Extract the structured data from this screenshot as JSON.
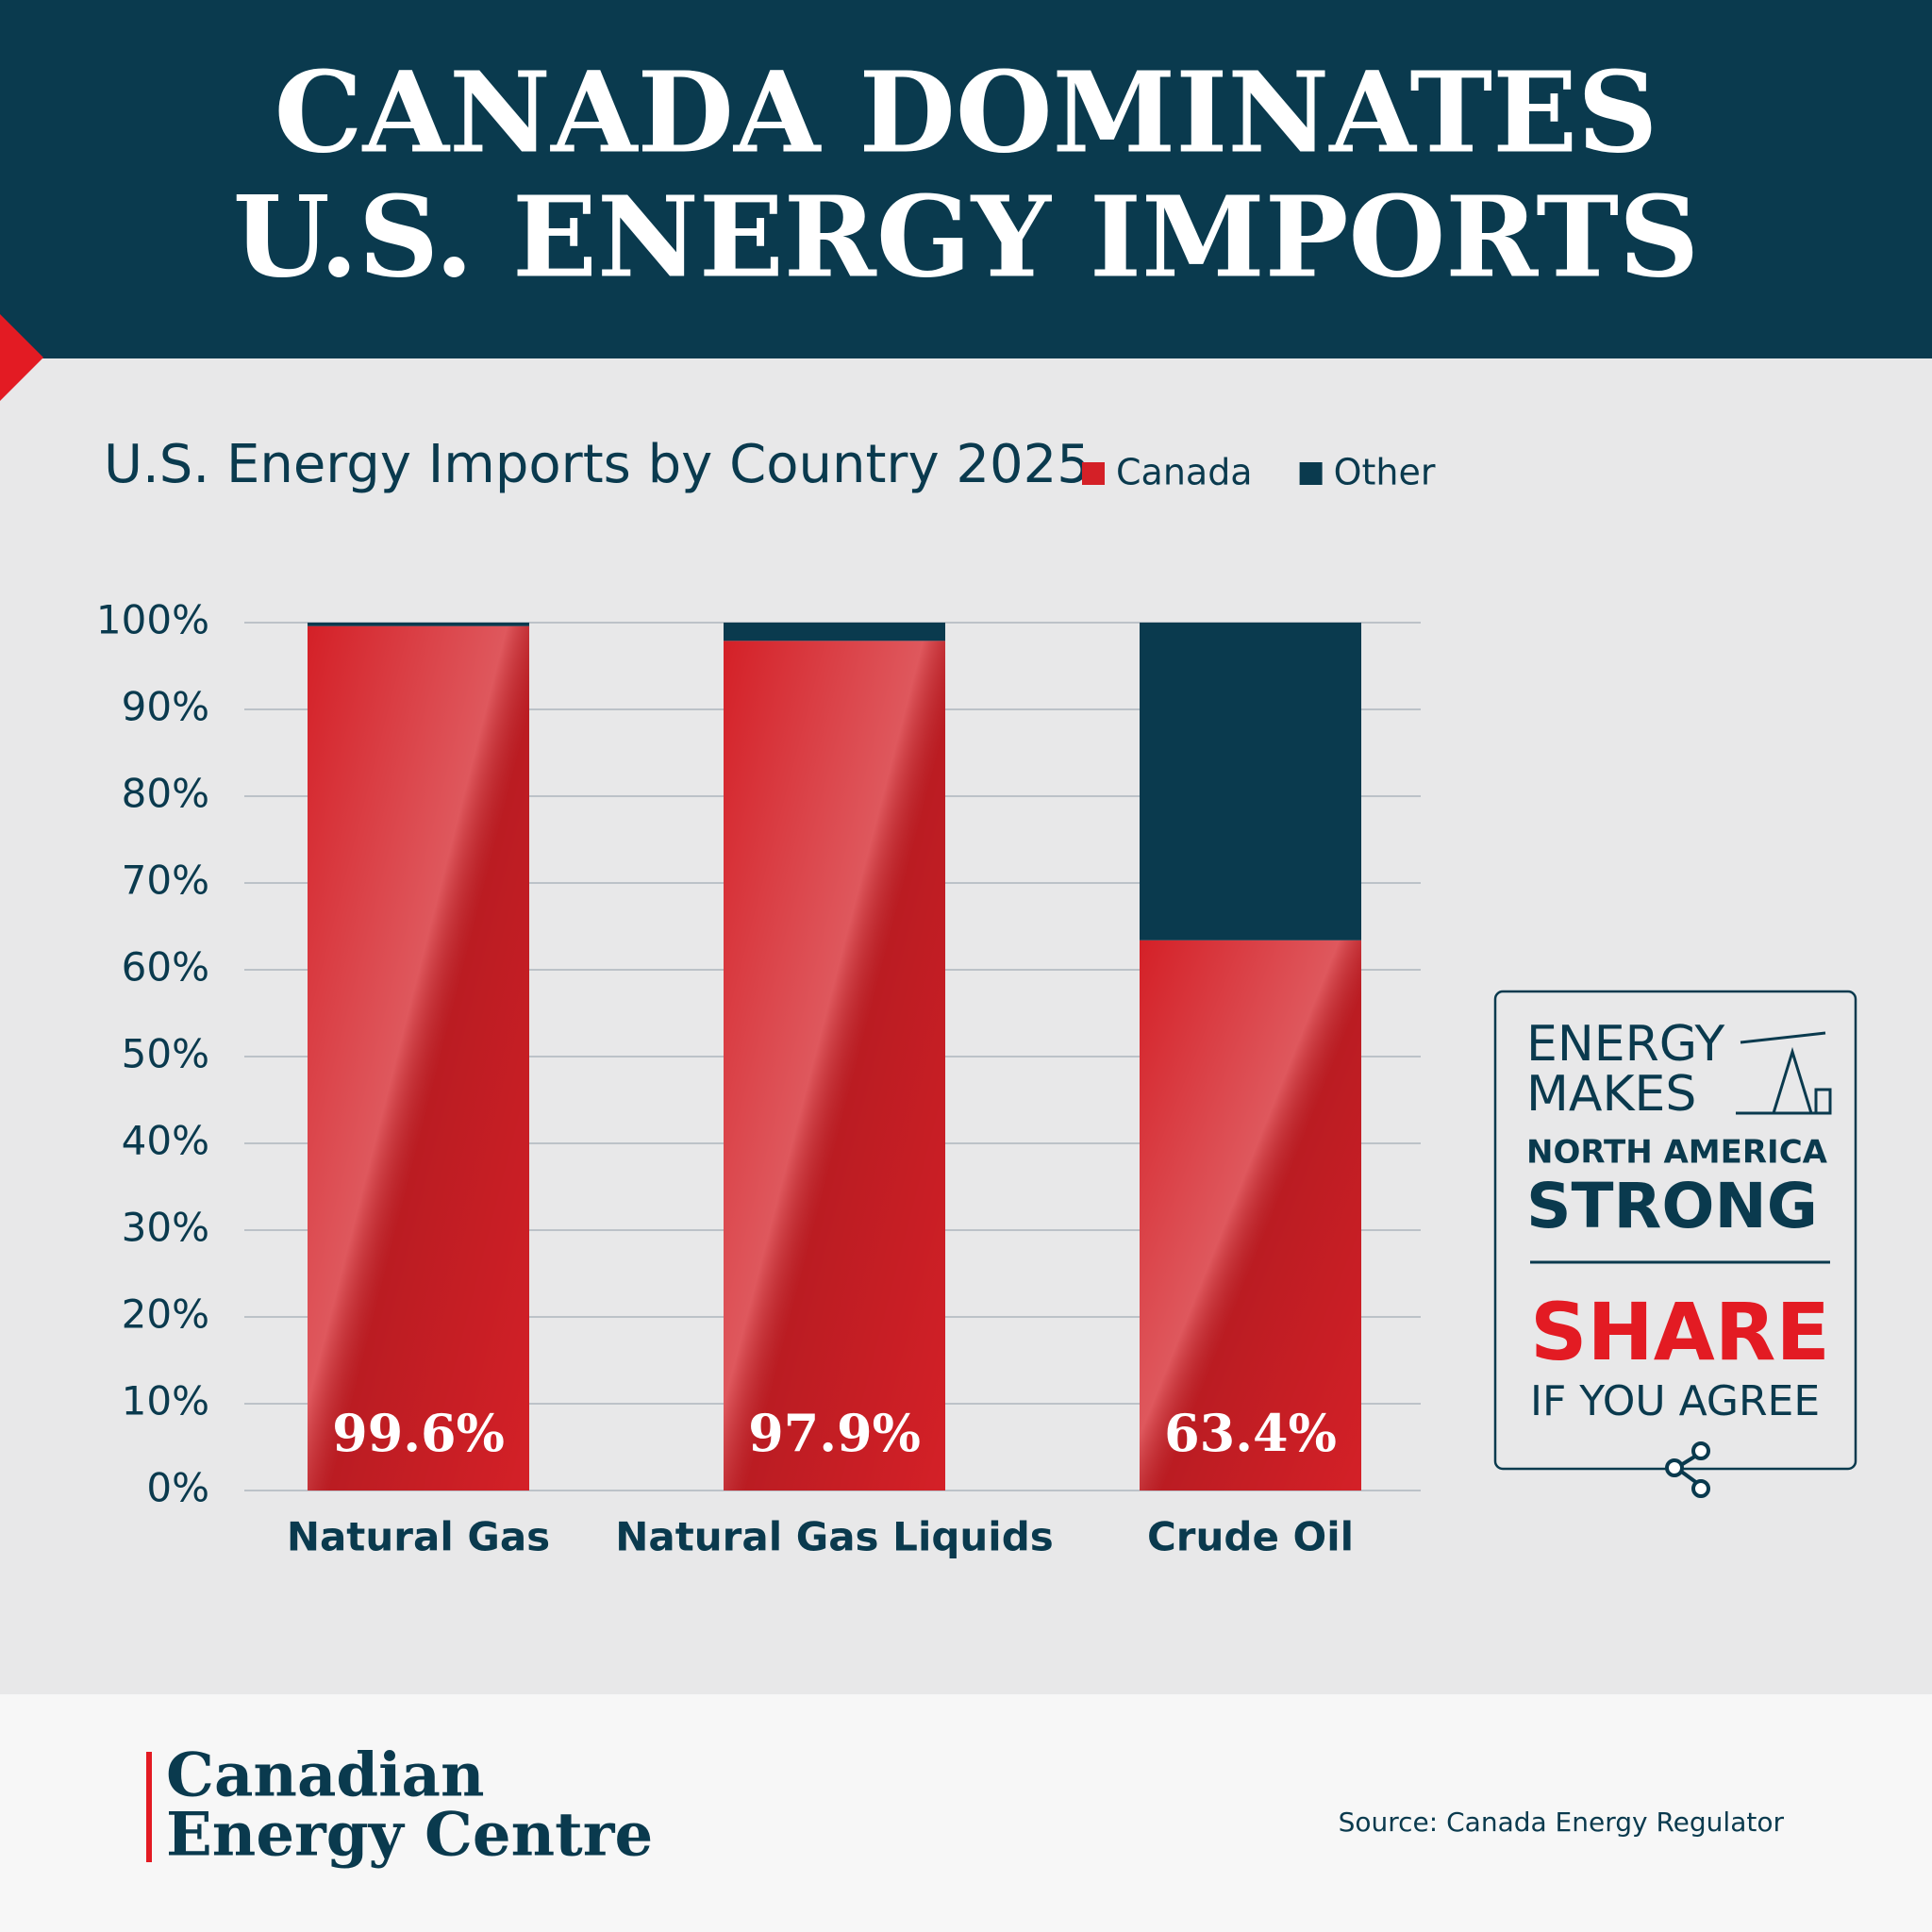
{
  "header": {
    "title_lines": [
      "CANADA DOMINATES",
      "U.S. ENERGY IMPORTS"
    ]
  },
  "chart_data": {
    "type": "bar",
    "stacked": true,
    "title": "U.S. Energy Imports by Country 2025",
    "categories": [
      "Natural Gas",
      "Natural Gas Liquids",
      "Crude Oil"
    ],
    "series": [
      {
        "name": "Canada",
        "color": "#d42027",
        "values": [
          99.6,
          97.9,
          63.4
        ],
        "value_labels": [
          "99.6%",
          "97.9%",
          "63.4%"
        ]
      },
      {
        "name": "Other",
        "color": "#0a3a4e",
        "values": [
          0.4,
          2.1,
          36.6
        ]
      }
    ],
    "ylim": [
      0,
      100
    ],
    "yticks": [
      {
        "value": 0,
        "label": "0%"
      },
      {
        "value": 10,
        "label": "10%"
      },
      {
        "value": 20,
        "label": "20%"
      },
      {
        "value": 30,
        "label": "30%"
      },
      {
        "value": 40,
        "label": "40%"
      },
      {
        "value": 50,
        "label": "50%"
      },
      {
        "value": 60,
        "label": "60%"
      },
      {
        "value": 70,
        "label": "70%"
      },
      {
        "value": 80,
        "label": "80%"
      },
      {
        "value": 90,
        "label": "90%"
      },
      {
        "value": 100,
        "label": "100%"
      }
    ],
    "grid": true,
    "legend": "top"
  },
  "badge": {
    "lines": [
      "ENERGY",
      "MAKES",
      "NORTH AMERICA",
      "STRONG",
      "SHARE",
      "IF YOU AGREE"
    ]
  },
  "footer": {
    "logo_lines": [
      "Canadian",
      "Energy Centre"
    ],
    "source": "Source: Canada Energy Regulator"
  }
}
